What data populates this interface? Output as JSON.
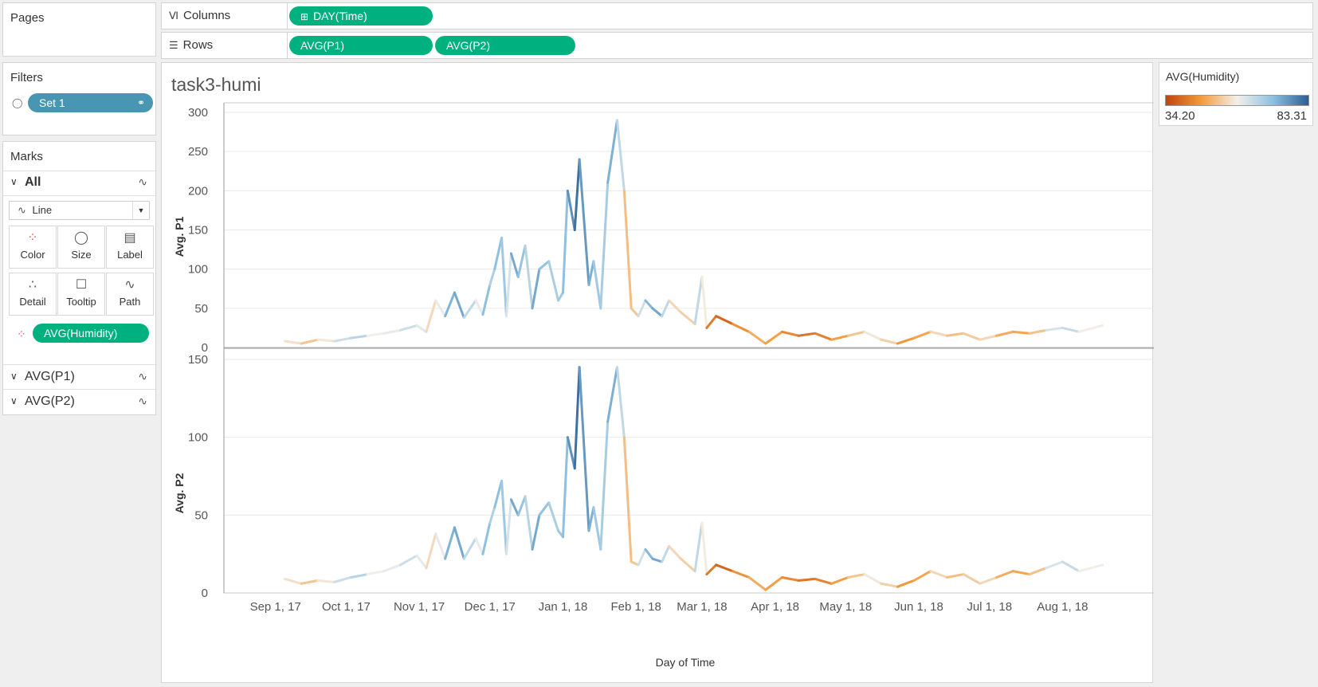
{
  "pages": {
    "title": "Pages"
  },
  "columns": {
    "label": "Columns",
    "pill": "DAY(Time)"
  },
  "rows": {
    "label": "Rows",
    "pills": [
      "AVG(P1)",
      "AVG(P2)"
    ]
  },
  "filters": {
    "title": "Filters",
    "pill": "Set 1"
  },
  "marks": {
    "title": "Marks",
    "all_label": "All",
    "mark_type": "Line",
    "cards": [
      "Color",
      "Size",
      "Label",
      "Detail",
      "Tooltip",
      "Path"
    ],
    "color_pill": "AVG(Humidity)",
    "sections": [
      "AVG(P1)",
      "AVG(P2)"
    ]
  },
  "legend": {
    "title": "AVG(Humidity)",
    "min_label": "34.20",
    "max_label": "83.31",
    "colors": [
      "#c1440e",
      "#f39b3c",
      "#f2f0ea",
      "#8ec0e0",
      "#2c5e92"
    ]
  },
  "sheet": {
    "title": "task3-humi"
  },
  "chart_data": [
    {
      "type": "line",
      "ylabel": "Avg. P1",
      "yticks": [
        0,
        50,
        100,
        150,
        200,
        250,
        300
      ],
      "ylim": [
        0,
        300
      ],
      "xlabel": "Day of Time",
      "xticks": [
        "Sep 1, 17",
        "Oct 1, 17",
        "Nov 1, 17",
        "Dec 1, 17",
        "Jan 1, 18",
        "Feb 1, 18",
        "Mar 1, 18",
        "Apr 1, 18",
        "May 1, 18",
        "Jun 1, 18",
        "Jul 1, 18",
        "Aug 1, 18"
      ],
      "xrange": [
        "2017-09-05",
        "2018-08-18"
      ],
      "color_by": "AVG(Humidity)",
      "x": [
        "2017-09-05",
        "2017-09-12",
        "2017-09-19",
        "2017-09-26",
        "2017-10-03",
        "2017-10-10",
        "2017-10-17",
        "2017-10-24",
        "2017-10-31",
        "2017-11-04",
        "2017-11-08",
        "2017-11-12",
        "2017-11-16",
        "2017-11-20",
        "2017-11-25",
        "2017-11-28",
        "2017-12-01",
        "2017-12-03",
        "2017-12-06",
        "2017-12-08",
        "2017-12-10",
        "2017-12-13",
        "2017-12-16",
        "2017-12-19",
        "2017-12-22",
        "2017-12-26",
        "2017-12-30",
        "2018-01-01",
        "2018-01-03",
        "2018-01-06",
        "2018-01-08",
        "2018-01-12",
        "2018-01-14",
        "2018-01-17",
        "2018-01-20",
        "2018-01-24",
        "2018-01-27",
        "2018-01-30",
        "2018-02-02",
        "2018-02-05",
        "2018-02-08",
        "2018-02-12",
        "2018-02-15",
        "2018-02-20",
        "2018-02-26",
        "2018-03-01",
        "2018-03-03",
        "2018-03-07",
        "2018-03-14",
        "2018-03-21",
        "2018-03-28",
        "2018-04-04",
        "2018-04-11",
        "2018-04-18",
        "2018-04-25",
        "2018-05-02",
        "2018-05-09",
        "2018-05-16",
        "2018-05-23",
        "2018-05-30",
        "2018-06-06",
        "2018-06-13",
        "2018-06-20",
        "2018-06-27",
        "2018-07-04",
        "2018-07-11",
        "2018-07-18",
        "2018-07-25",
        "2018-08-01",
        "2018-08-08",
        "2018-08-18"
      ],
      "values": [
        8,
        5,
        10,
        8,
        12,
        15,
        18,
        22,
        28,
        20,
        60,
        40,
        70,
        38,
        60,
        42,
        80,
        100,
        140,
        40,
        120,
        90,
        130,
        50,
        100,
        110,
        60,
        70,
        200,
        150,
        240,
        80,
        110,
        50,
        210,
        290,
        200,
        50,
        40,
        60,
        50,
        40,
        60,
        45,
        30,
        90,
        25,
        40,
        30,
        20,
        5,
        20,
        15,
        18,
        10,
        15,
        20,
        10,
        5,
        12,
        20,
        15,
        18,
        10,
        15,
        20,
        18,
        22,
        25,
        20,
        28
      ],
      "humidity": [
        58,
        55,
        50,
        65,
        62,
        70,
        48,
        72,
        55,
        66,
        45,
        75,
        70,
        78,
        52,
        68,
        74,
        60,
        82,
        56,
        68,
        80,
        60,
        72,
        76,
        65,
        70,
        68,
        74,
        80,
        82,
        70,
        76,
        62,
        74,
        72,
        58,
        45,
        60,
        66,
        78,
        70,
        60,
        50,
        58,
        72,
        44,
        40,
        38,
        52,
        46,
        48,
        40,
        42,
        44,
        50,
        55,
        60,
        48,
        44,
        52,
        58,
        45,
        62,
        48,
        50,
        46,
        58,
        66,
        62,
        55
      ]
    },
    {
      "type": "line",
      "ylabel": "Avg. P2",
      "yticks": [
        0,
        50,
        100,
        150
      ],
      "ylim": [
        0,
        150
      ],
      "xlabel": "Day of Time",
      "xticks": [
        "Sep 1, 17",
        "Oct 1, 17",
        "Nov 1, 17",
        "Dec 1, 17",
        "Jan 1, 18",
        "Feb 1, 18",
        "Mar 1, 18",
        "Apr 1, 18",
        "May 1, 18",
        "Jun 1, 18",
        "Jul 1, 18",
        "Aug 1, 18"
      ],
      "xrange": [
        "2017-09-05",
        "2018-08-18"
      ],
      "color_by": "AVG(Humidity)",
      "x": [
        "2017-09-05",
        "2017-09-12",
        "2017-09-19",
        "2017-09-26",
        "2017-10-03",
        "2017-10-10",
        "2017-10-17",
        "2017-10-24",
        "2017-10-31",
        "2017-11-04",
        "2017-11-08",
        "2017-11-12",
        "2017-11-16",
        "2017-11-20",
        "2017-11-25",
        "2017-11-28",
        "2017-12-01",
        "2017-12-03",
        "2017-12-06",
        "2017-12-08",
        "2017-12-10",
        "2017-12-13",
        "2017-12-16",
        "2017-12-19",
        "2017-12-22",
        "2017-12-26",
        "2017-12-30",
        "2018-01-01",
        "2018-01-03",
        "2018-01-06",
        "2018-01-08",
        "2018-01-12",
        "2018-01-14",
        "2018-01-17",
        "2018-01-20",
        "2018-01-24",
        "2018-01-27",
        "2018-01-30",
        "2018-02-02",
        "2018-02-05",
        "2018-02-08",
        "2018-02-12",
        "2018-02-15",
        "2018-02-20",
        "2018-02-26",
        "2018-03-01",
        "2018-03-03",
        "2018-03-07",
        "2018-03-14",
        "2018-03-21",
        "2018-03-28",
        "2018-04-04",
        "2018-04-11",
        "2018-04-18",
        "2018-04-25",
        "2018-05-02",
        "2018-05-09",
        "2018-05-16",
        "2018-05-23",
        "2018-05-30",
        "2018-06-06",
        "2018-06-13",
        "2018-06-20",
        "2018-06-27",
        "2018-07-04",
        "2018-07-11",
        "2018-07-18",
        "2018-07-25",
        "2018-08-01",
        "2018-08-08",
        "2018-08-18"
      ],
      "values": [
        9,
        6,
        8,
        7,
        10,
        12,
        14,
        18,
        24,
        16,
        38,
        22,
        42,
        22,
        35,
        25,
        45,
        55,
        72,
        25,
        60,
        50,
        62,
        28,
        50,
        58,
        40,
        36,
        100,
        80,
        145,
        40,
        55,
        28,
        110,
        145,
        100,
        20,
        18,
        28,
        22,
        20,
        30,
        22,
        14,
        45,
        12,
        18,
        14,
        10,
        2,
        10,
        8,
        9,
        6,
        10,
        12,
        6,
        4,
        8,
        14,
        10,
        12,
        6,
        10,
        14,
        12,
        16,
        20,
        14,
        18
      ],
      "humidity": [
        58,
        55,
        50,
        65,
        62,
        70,
        48,
        72,
        55,
        66,
        45,
        75,
        70,
        78,
        52,
        68,
        74,
        60,
        82,
        56,
        68,
        80,
        60,
        72,
        76,
        65,
        70,
        68,
        74,
        80,
        82,
        70,
        76,
        62,
        74,
        72,
        58,
        45,
        60,
        66,
        78,
        70,
        60,
        50,
        58,
        72,
        44,
        40,
        38,
        52,
        46,
        48,
        40,
        42,
        44,
        50,
        55,
        60,
        48,
        44,
        52,
        58,
        45,
        62,
        48,
        50,
        46,
        58,
        66,
        62,
        55
      ]
    }
  ]
}
